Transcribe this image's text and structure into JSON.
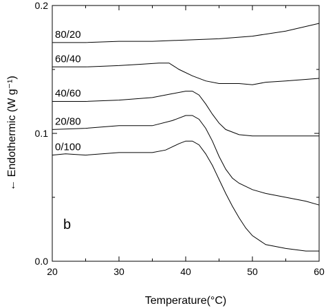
{
  "chart_data": {
    "type": "line",
    "xlabel": "Temperature(°C)",
    "ylabel": "← Endothermic (W g⁻¹)",
    "xlim": [
      20,
      60
    ],
    "ylim": [
      0.0,
      0.2
    ],
    "xticks": [
      "20",
      "30",
      "40",
      "50",
      "60"
    ],
    "yticks": [
      "0.0",
      "0.1",
      "0.2"
    ],
    "panel_label": "b",
    "grid": false,
    "series": [
      {
        "name": "80/20",
        "x": [
          20,
          25,
          30,
          35,
          40,
          45,
          50,
          55,
          60
        ],
        "y": [
          0.171,
          0.171,
          0.172,
          0.172,
          0.173,
          0.174,
          0.176,
          0.18,
          0.186
        ]
      },
      {
        "name": "60/40",
        "x": [
          20,
          25,
          30,
          33,
          36,
          37.5,
          39,
          41,
          43,
          45,
          48,
          50,
          52,
          55,
          60
        ],
        "y": [
          0.152,
          0.152,
          0.153,
          0.154,
          0.155,
          0.155,
          0.15,
          0.145,
          0.141,
          0.139,
          0.139,
          0.138,
          0.14,
          0.141,
          0.143
        ]
      },
      {
        "name": "40/60",
        "x": [
          20,
          25,
          30,
          35,
          38,
          40,
          41,
          42,
          43,
          44,
          45,
          46,
          48,
          50,
          55,
          60
        ],
        "y": [
          0.125,
          0.125,
          0.126,
          0.128,
          0.131,
          0.133,
          0.133,
          0.13,
          0.123,
          0.115,
          0.108,
          0.103,
          0.099,
          0.098,
          0.098,
          0.098
        ]
      },
      {
        "name": "20/80",
        "x": [
          20,
          25,
          30,
          35,
          38,
          40,
          41,
          42,
          43,
          44,
          45,
          46,
          47,
          48,
          50,
          52,
          55,
          58,
          60
        ],
        "y": [
          0.103,
          0.104,
          0.106,
          0.106,
          0.11,
          0.114,
          0.114,
          0.111,
          0.104,
          0.094,
          0.082,
          0.072,
          0.065,
          0.061,
          0.056,
          0.053,
          0.05,
          0.047,
          0.044
        ]
      },
      {
        "name": "0/100",
        "x": [
          20,
          22,
          25,
          30,
          35,
          37,
          39,
          40,
          41,
          42,
          43,
          44,
          45,
          46,
          47,
          48,
          49,
          50,
          52,
          55,
          58,
          60
        ],
        "y": [
          0.083,
          0.084,
          0.083,
          0.085,
          0.085,
          0.087,
          0.092,
          0.094,
          0.094,
          0.091,
          0.084,
          0.075,
          0.064,
          0.053,
          0.043,
          0.034,
          0.026,
          0.02,
          0.013,
          0.01,
          0.008,
          0.008
        ]
      }
    ]
  }
}
